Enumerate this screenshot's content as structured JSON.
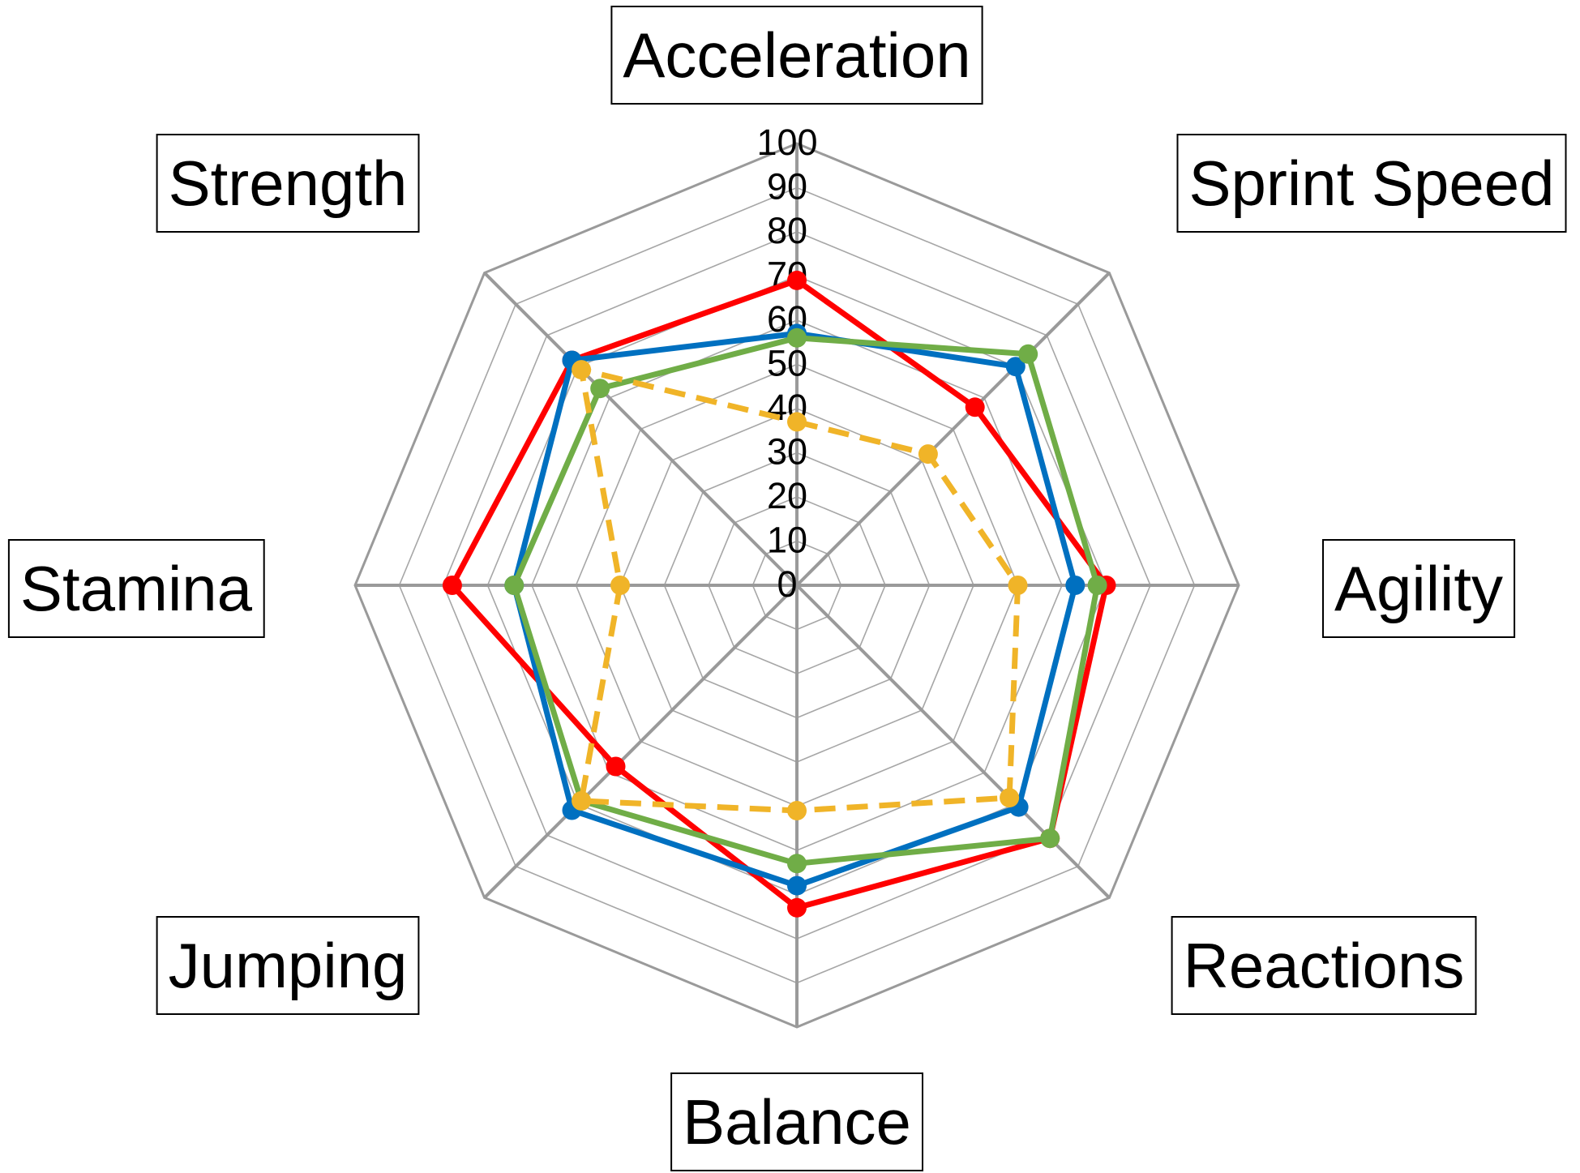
{
  "chart_data": {
    "type": "radar",
    "title": "",
    "axes": [
      "Acceleration",
      "Sprint Speed",
      "Agility",
      "Reactions",
      "Balance",
      "Stamina",
      "Jumping",
      "Strength"
    ],
    "axis_order_clockwise_from_top": [
      "Acceleration",
      "Sprint Speed",
      "Agility",
      "Reactions",
      "Balance",
      "Jumping",
      "Stamina",
      "Strength"
    ],
    "range": [
      0,
      100
    ],
    "ticks": [
      0,
      10,
      20,
      30,
      40,
      50,
      60,
      70,
      80,
      90,
      100
    ],
    "gridlines": "polygon",
    "legend": "none",
    "series": [
      {
        "color": "#FF0000",
        "line_style": "solid",
        "values": {
          "Acceleration": 69,
          "Sprint Speed": 57,
          "Agility": 70,
          "Reactions": 81,
          "Balance": 73,
          "Jumping": 58,
          "Stamina": 78,
          "Strength": 72
        }
      },
      {
        "color": "#0070C0",
        "line_style": "solid",
        "values": {
          "Acceleration": 57,
          "Sprint Speed": 70,
          "Agility": 63,
          "Reactions": 71,
          "Balance": 68,
          "Jumping": 72,
          "Stamina": 64,
          "Strength": 72
        }
      },
      {
        "color": "#70AD47",
        "line_style": "solid",
        "values": {
          "Acceleration": 56,
          "Sprint Speed": 74,
          "Agility": 68,
          "Reactions": 81,
          "Balance": 63,
          "Jumping": 69,
          "Stamina": 64,
          "Strength": 63
        }
      },
      {
        "color": "#F0B428",
        "line_style": "dashed",
        "values": {
          "Acceleration": 37,
          "Sprint Speed": 42,
          "Agility": 50,
          "Reactions": 68,
          "Balance": 51,
          "Jumping": 69,
          "Stamina": 40,
          "Strength": 69
        }
      }
    ]
  }
}
